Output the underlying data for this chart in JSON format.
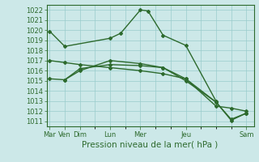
{
  "background_color": "#cce8e8",
  "grid_color": "#99cccc",
  "line_color": "#2d6a2d",
  "marker_style": "D",
  "marker_size": 2.0,
  "line_width": 1.0,
  "ylabel_ticks": [
    1011,
    1012,
    1013,
    1014,
    1015,
    1016,
    1017,
    1018,
    1019,
    1020,
    1021,
    1022
  ],
  "ylim": [
    1010.5,
    1022.5
  ],
  "xlabel": "Pression niveau de la mer( hPa )",
  "xlabel_fontsize": 7.5,
  "tick_fontsize": 6,
  "xtick_positions": [
    0,
    1,
    2,
    4,
    6,
    9,
    13
  ],
  "xtick_labels": [
    "Mar",
    "Ven",
    "Dim",
    "Lun",
    "Mer",
    "Jeu",
    "Sam"
  ],
  "xlim": [
    -0.2,
    13.5
  ],
  "series": [
    {
      "x": [
        0,
        1,
        4,
        4.7,
        6,
        6.5,
        7.5,
        9,
        11
      ],
      "y": [
        1019.9,
        1018.4,
        1019.2,
        1019.7,
        1022.0,
        1021.9,
        1019.5,
        1018.5,
        1013.0
      ]
    },
    {
      "x": [
        0,
        1,
        2,
        4,
        6,
        7.5,
        9,
        11,
        12,
        13
      ],
      "y": [
        1017.0,
        1016.8,
        1016.6,
        1016.3,
        1016.0,
        1015.7,
        1015.2,
        1012.9,
        1011.2,
        1011.8
      ]
    },
    {
      "x": [
        0,
        1,
        2,
        4,
        6,
        7.5,
        9,
        11,
        12,
        13
      ],
      "y": [
        1015.2,
        1015.1,
        1016.2,
        1016.6,
        1016.5,
        1016.3,
        1015.2,
        1012.5,
        1012.3,
        1012.0
      ]
    },
    {
      "x": [
        1,
        2,
        4,
        6,
        7.5,
        9,
        11,
        12,
        13
      ],
      "y": [
        1015.1,
        1016.0,
        1017.0,
        1016.7,
        1016.3,
        1015.0,
        1012.9,
        1011.1,
        1011.8
      ]
    }
  ]
}
